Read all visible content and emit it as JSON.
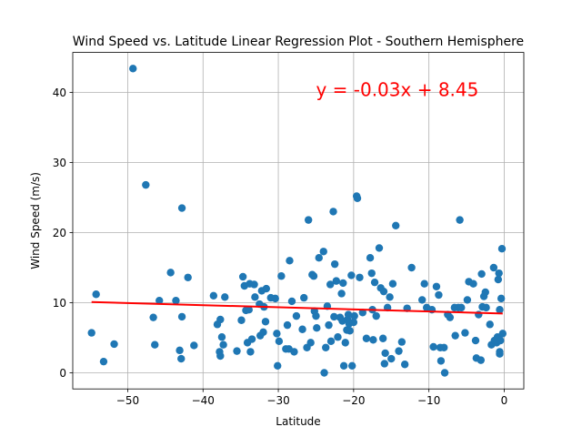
{
  "chart_data": {
    "type": "scatter",
    "title": "Wind Speed vs. Latitude Linear Regression Plot - Southern Hemisphere",
    "xlabel": "Latitude",
    "ylabel": "Wind Speed (m/s)",
    "xlim": [
      -57.3,
      2.6
    ],
    "ylim": [
      -2.3,
      45.7
    ],
    "xticks": [
      -50,
      -40,
      -30,
      -20,
      -10,
      0
    ],
    "yticks": [
      0,
      10,
      20,
      30,
      40
    ],
    "grid": true,
    "point_color": "#1f77b4",
    "line_color": "#ff0000",
    "annotation": {
      "text": "y = -0.03x + 8.45",
      "x": -25.0,
      "y": 39.5
    },
    "regression": {
      "slope": -0.03,
      "intercept": 8.45,
      "x_range": [
        -54.8,
        -0.2
      ]
    },
    "points": [
      [
        -54.8,
        5.7
      ],
      [
        -54.2,
        11.2
      ],
      [
        -53.2,
        1.6
      ],
      [
        -51.8,
        4.1
      ],
      [
        -49.3,
        43.4
      ],
      [
        -47.6,
        26.8
      ],
      [
        -46.6,
        7.9
      ],
      [
        -46.4,
        4.0
      ],
      [
        -45.8,
        10.3
      ],
      [
        -44.3,
        14.3
      ],
      [
        -43.6,
        10.3
      ],
      [
        -43.1,
        3.2
      ],
      [
        -42.9,
        2.0
      ],
      [
        -42.8,
        23.5
      ],
      [
        -42.8,
        8.0
      ],
      [
        -42.0,
        13.6
      ],
      [
        -41.2,
        3.9
      ],
      [
        -38.6,
        11.0
      ],
      [
        -38.1,
        6.9
      ],
      [
        -37.8,
        3.0
      ],
      [
        -37.7,
        2.4
      ],
      [
        -37.7,
        7.6
      ],
      [
        -37.5,
        5.1
      ],
      [
        -37.3,
        4.0
      ],
      [
        -37.1,
        10.8
      ],
      [
        -35.5,
        3.1
      ],
      [
        -34.9,
        7.5
      ],
      [
        -34.7,
        13.7
      ],
      [
        -34.5,
        12.4
      ],
      [
        -34.3,
        8.9
      ],
      [
        -34.1,
        4.3
      ],
      [
        -33.9,
        9.0
      ],
      [
        -33.8,
        12.7
      ],
      [
        -33.7,
        3.0
      ],
      [
        -33.5,
        4.8
      ],
      [
        -33.2,
        12.6
      ],
      [
        -33.1,
        10.8
      ],
      [
        -32.5,
        9.8
      ],
      [
        -32.4,
        5.3
      ],
      [
        -32.2,
        11.7
      ],
      [
        -32.0,
        5.8
      ],
      [
        -31.9,
        9.4
      ],
      [
        -31.7,
        7.3
      ],
      [
        -31.6,
        12.0
      ],
      [
        -31.0,
        10.7
      ],
      [
        -30.4,
        10.6
      ],
      [
        -30.2,
        5.6
      ],
      [
        -30.1,
        1.0
      ],
      [
        -29.9,
        4.5
      ],
      [
        -29.6,
        13.8
      ],
      [
        -29.0,
        3.4
      ],
      [
        -28.8,
        6.8
      ],
      [
        -28.6,
        3.4
      ],
      [
        -28.5,
        16.0
      ],
      [
        -28.2,
        10.2
      ],
      [
        -27.9,
        3.0
      ],
      [
        -27.6,
        8.1
      ],
      [
        -26.8,
        6.2
      ],
      [
        -26.6,
        10.7
      ],
      [
        -26.2,
        3.6
      ],
      [
        -26.0,
        21.8
      ],
      [
        -25.7,
        4.3
      ],
      [
        -25.5,
        14.0
      ],
      [
        -25.3,
        13.8
      ],
      [
        -25.2,
        8.8
      ],
      [
        -25.0,
        8.1
      ],
      [
        -24.9,
        6.4
      ],
      [
        -24.6,
        16.4
      ],
      [
        -24.0,
        17.3
      ],
      [
        -23.9,
        0.0
      ],
      [
        -23.7,
        3.6
      ],
      [
        -23.5,
        9.5
      ],
      [
        -23.3,
        6.8
      ],
      [
        -23.1,
        12.6
      ],
      [
        -23.0,
        4.5
      ],
      [
        -22.7,
        23.0
      ],
      [
        -22.6,
        8.0
      ],
      [
        -22.5,
        15.5
      ],
      [
        -22.3,
        13.1
      ],
      [
        -22.1,
        5.1
      ],
      [
        -21.8,
        7.9
      ],
      [
        -21.6,
        11.3
      ],
      [
        -21.5,
        7.4
      ],
      [
        -21.4,
        12.8
      ],
      [
        -21.3,
        1.0
      ],
      [
        -21.1,
        4.3
      ],
      [
        -20.9,
        6.1
      ],
      [
        -20.8,
        7.6
      ],
      [
        -20.7,
        8.3
      ],
      [
        -20.6,
        7.0
      ],
      [
        -20.5,
        6.0
      ],
      [
        -20.3,
        13.9
      ],
      [
        -20.2,
        1.0
      ],
      [
        -20.0,
        7.2
      ],
      [
        -19.9,
        8.1
      ],
      [
        -19.6,
        25.2
      ],
      [
        -19.5,
        24.9
      ],
      [
        -19.2,
        13.6
      ],
      [
        -18.8,
        8.6
      ],
      [
        -18.3,
        4.9
      ],
      [
        -17.8,
        16.4
      ],
      [
        -17.6,
        14.2
      ],
      [
        -17.5,
        9.0
      ],
      [
        -17.4,
        4.7
      ],
      [
        -17.2,
        12.9
      ],
      [
        -17.0,
        8.1
      ],
      [
        -16.6,
        17.8
      ],
      [
        -16.4,
        12.1
      ],
      [
        -16.1,
        4.9
      ],
      [
        -16.0,
        11.6
      ],
      [
        -15.9,
        1.3
      ],
      [
        -15.8,
        2.8
      ],
      [
        -15.5,
        9.3
      ],
      [
        -15.2,
        10.8
      ],
      [
        -15.0,
        2.0
      ],
      [
        -14.8,
        12.7
      ],
      [
        -14.4,
        21.0
      ],
      [
        -14.0,
        3.1
      ],
      [
        -13.6,
        4.4
      ],
      [
        -13.2,
        1.2
      ],
      [
        -12.9,
        9.2
      ],
      [
        -12.3,
        15.0
      ],
      [
        -10.9,
        10.4
      ],
      [
        -10.6,
        12.7
      ],
      [
        -10.3,
        9.3
      ],
      [
        -9.6,
        9.0
      ],
      [
        -9.4,
        3.7
      ],
      [
        -9.0,
        12.3
      ],
      [
        -8.7,
        11.1
      ],
      [
        -8.5,
        3.6
      ],
      [
        -8.4,
        1.7
      ],
      [
        -8.0,
        3.6
      ],
      [
        -7.9,
        0.0
      ],
      [
        -7.5,
        8.3
      ],
      [
        -7.2,
        7.9
      ],
      [
        -6.6,
        9.3
      ],
      [
        -6.5,
        5.3
      ],
      [
        -6.1,
        9.3
      ],
      [
        -5.9,
        21.8
      ],
      [
        -5.7,
        9.3
      ],
      [
        -5.2,
        5.7
      ],
      [
        -4.9,
        10.4
      ],
      [
        -4.7,
        13.0
      ],
      [
        -4.1,
        12.7
      ],
      [
        -3.8,
        4.6
      ],
      [
        -3.7,
        2.1
      ],
      [
        -3.4,
        8.3
      ],
      [
        -3.1,
        1.8
      ],
      [
        -3.0,
        14.1
      ],
      [
        -2.9,
        9.4
      ],
      [
        -2.7,
        10.9
      ],
      [
        -2.5,
        11.5
      ],
      [
        -2.4,
        9.3
      ],
      [
        -1.9,
        6.9
      ],
      [
        -1.7,
        4.0
      ],
      [
        -1.4,
        15.0
      ],
      [
        -1.3,
        4.6
      ],
      [
        -1.0,
        4.3
      ],
      [
        -0.9,
        5.1
      ],
      [
        -0.8,
        13.3
      ],
      [
        -0.7,
        14.2
      ],
      [
        -0.6,
        3.0
      ],
      [
        -0.6,
        9.0
      ],
      [
        -0.6,
        2.7
      ],
      [
        -0.5,
        4.6
      ],
      [
        -0.4,
        10.6
      ],
      [
        -0.3,
        17.7
      ],
      [
        -0.2,
        5.6
      ]
    ]
  }
}
